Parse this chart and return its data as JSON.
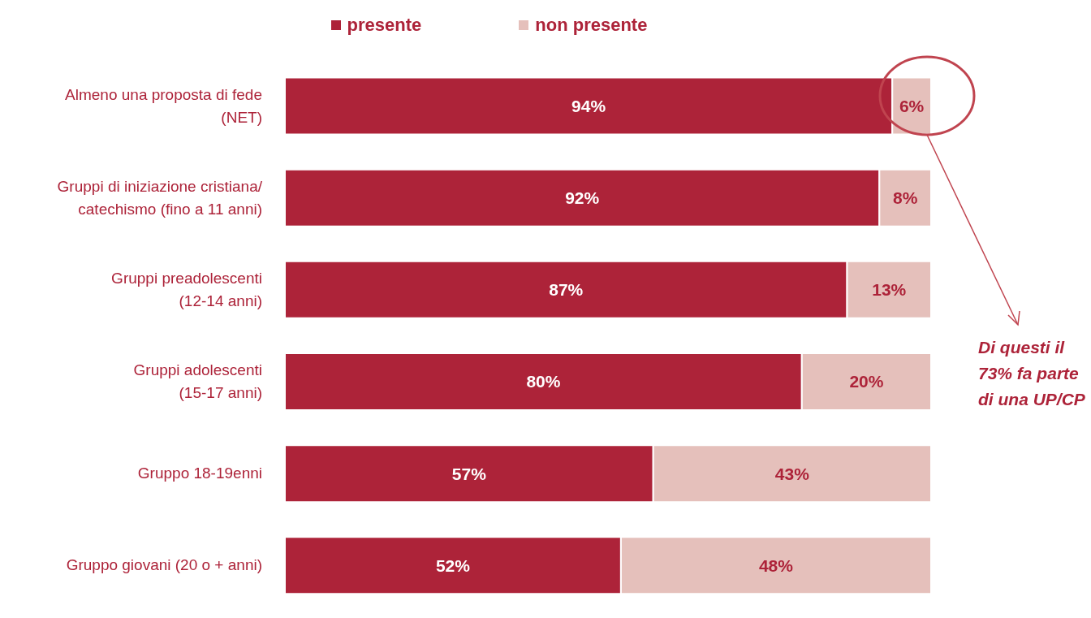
{
  "chart_data": {
    "type": "bar",
    "orientation": "horizontal",
    "stacked": true,
    "legend": "top",
    "categories": [
      "Almeno una proposta di fede\n(NET)",
      "Gruppi di iniziazione cristiana/\ncatechismo (fino a 11 anni)",
      "Gruppi preadolescenti\n(12-14 anni)",
      "Gruppi adolescenti\n(15-17 anni)",
      "Gruppo 18-19enni",
      "Gruppo giovani (20 o + anni)"
    ],
    "series": [
      {
        "name": "presente",
        "color": "#ad2339",
        "values": [
          94,
          92,
          87,
          80,
          57,
          52
        ],
        "value_labels": [
          "94%",
          "92%",
          "87%",
          "80%",
          "57%",
          "52%"
        ]
      },
      {
        "name": "non presente",
        "color": "#e5c0bb",
        "values": [
          6,
          8,
          13,
          20,
          43,
          48
        ],
        "value_labels": [
          "6%",
          "8%",
          "13%",
          "20%",
          "43%",
          "48%"
        ]
      }
    ],
    "annotations": [
      "Di questi il\n73% fa parte\ndi una UP/CP"
    ]
  }
}
